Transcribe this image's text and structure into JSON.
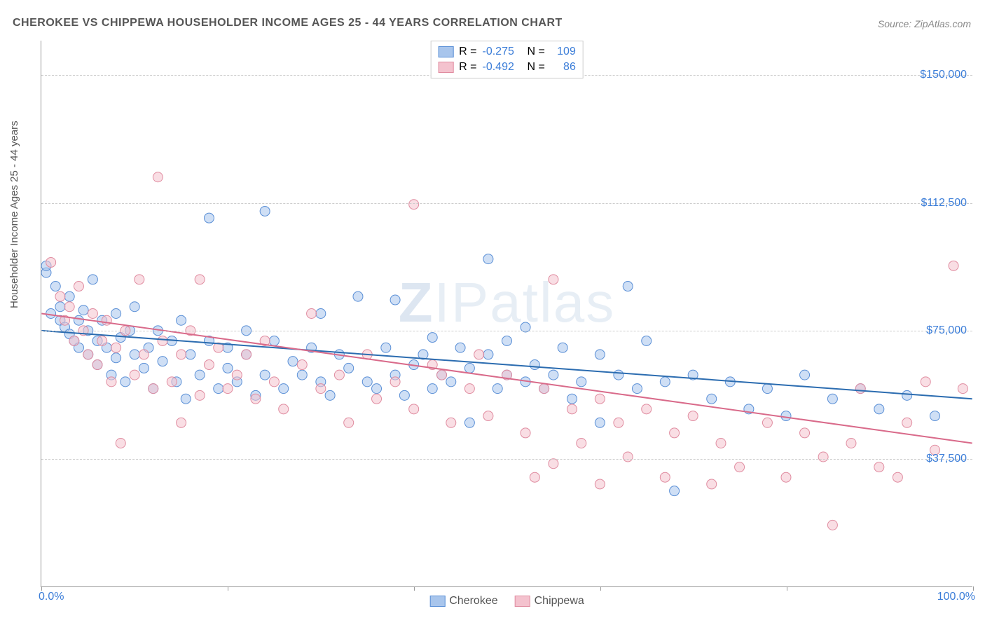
{
  "title": "CHEROKEE VS CHIPPEWA HOUSEHOLDER INCOME AGES 25 - 44 YEARS CORRELATION CHART",
  "source": "Source: ZipAtlas.com",
  "y_axis_label": "Householder Income Ages 25 - 44 years",
  "watermark": {
    "z": "Z",
    "ip": "IP",
    "atlas": "atlas"
  },
  "chart": {
    "type": "scatter",
    "xlim": [
      0,
      100
    ],
    "ylim": [
      0,
      160000
    ],
    "x_ticks": [
      0,
      20,
      40,
      60,
      80,
      100
    ],
    "y_gridlines": [
      37500,
      75000,
      112500,
      150000
    ],
    "y_tick_labels": [
      "$37,500",
      "$75,000",
      "$112,500",
      "$150,000"
    ],
    "x_min_label": "0.0%",
    "x_max_label": "100.0%",
    "background_color": "#ffffff",
    "grid_color": "#cccccc",
    "axis_color": "#999999",
    "point_radius": 7,
    "point_opacity": 0.55,
    "line_width": 2,
    "series": [
      {
        "name": "Cherokee",
        "fill": "#a8c5ec",
        "stroke": "#5a8fd6",
        "line_color": "#2b6cb0",
        "R": "-0.275",
        "N": "109",
        "regression": {
          "y_at_x0": 75000,
          "y_at_x100": 55000
        },
        "points": [
          [
            0.5,
            92000
          ],
          [
            0.5,
            94000
          ],
          [
            1,
            80000
          ],
          [
            1.5,
            88000
          ],
          [
            2,
            78000
          ],
          [
            2,
            82000
          ],
          [
            2.5,
            76000
          ],
          [
            3,
            74000
          ],
          [
            3,
            85000
          ],
          [
            3.5,
            72000
          ],
          [
            4,
            78000
          ],
          [
            4,
            70000
          ],
          [
            4.5,
            81000
          ],
          [
            5,
            68000
          ],
          [
            5,
            75000
          ],
          [
            5.5,
            90000
          ],
          [
            6,
            72000
          ],
          [
            6,
            65000
          ],
          [
            6.5,
            78000
          ],
          [
            7,
            70000
          ],
          [
            7.5,
            62000
          ],
          [
            8,
            80000
          ],
          [
            8,
            67000
          ],
          [
            8.5,
            73000
          ],
          [
            9,
            60000
          ],
          [
            9.5,
            75000
          ],
          [
            10,
            68000
          ],
          [
            10,
            82000
          ],
          [
            11,
            64000
          ],
          [
            11.5,
            70000
          ],
          [
            12,
            58000
          ],
          [
            12.5,
            75000
          ],
          [
            13,
            66000
          ],
          [
            14,
            72000
          ],
          [
            14.5,
            60000
          ],
          [
            15,
            78000
          ],
          [
            15.5,
            55000
          ],
          [
            16,
            68000
          ],
          [
            17,
            62000
          ],
          [
            18,
            72000
          ],
          [
            18,
            108000
          ],
          [
            19,
            58000
          ],
          [
            20,
            70000
          ],
          [
            20,
            64000
          ],
          [
            21,
            60000
          ],
          [
            22,
            68000
          ],
          [
            22,
            75000
          ],
          [
            23,
            56000
          ],
          [
            24,
            110000
          ],
          [
            24,
            62000
          ],
          [
            25,
            72000
          ],
          [
            26,
            58000
          ],
          [
            27,
            66000
          ],
          [
            28,
            62000
          ],
          [
            29,
            70000
          ],
          [
            30,
            60000
          ],
          [
            30,
            80000
          ],
          [
            31,
            56000
          ],
          [
            32,
            68000
          ],
          [
            33,
            64000
          ],
          [
            34,
            85000
          ],
          [
            35,
            60000
          ],
          [
            36,
            58000
          ],
          [
            37,
            70000
          ],
          [
            38,
            84000
          ],
          [
            38,
            62000
          ],
          [
            39,
            56000
          ],
          [
            40,
            65000
          ],
          [
            41,
            68000
          ],
          [
            42,
            73000
          ],
          [
            42,
            58000
          ],
          [
            43,
            62000
          ],
          [
            44,
            60000
          ],
          [
            45,
            70000
          ],
          [
            46,
            48000
          ],
          [
            46,
            64000
          ],
          [
            48,
            68000
          ],
          [
            48,
            96000
          ],
          [
            49,
            58000
          ],
          [
            50,
            72000
          ],
          [
            50,
            62000
          ],
          [
            52,
            60000
          ],
          [
            52,
            76000
          ],
          [
            53,
            65000
          ],
          [
            54,
            58000
          ],
          [
            55,
            62000
          ],
          [
            56,
            70000
          ],
          [
            57,
            55000
          ],
          [
            58,
            60000
          ],
          [
            60,
            68000
          ],
          [
            60,
            48000
          ],
          [
            62,
            62000
          ],
          [
            63,
            88000
          ],
          [
            64,
            58000
          ],
          [
            65,
            72000
          ],
          [
            67,
            60000
          ],
          [
            68,
            28000
          ],
          [
            70,
            62000
          ],
          [
            72,
            55000
          ],
          [
            74,
            60000
          ],
          [
            76,
            52000
          ],
          [
            78,
            58000
          ],
          [
            80,
            50000
          ],
          [
            82,
            62000
          ],
          [
            85,
            55000
          ],
          [
            88,
            58000
          ],
          [
            90,
            52000
          ],
          [
            93,
            56000
          ],
          [
            96,
            50000
          ]
        ]
      },
      {
        "name": "Chippewa",
        "fill": "#f4c2ce",
        "stroke": "#e08ca0",
        "line_color": "#d96a8a",
        "R": "-0.492",
        "N": "86",
        "regression": {
          "y_at_x0": 80000,
          "y_at_x100": 42000
        },
        "points": [
          [
            1,
            95000
          ],
          [
            2,
            85000
          ],
          [
            2.5,
            78000
          ],
          [
            3,
            82000
          ],
          [
            3.5,
            72000
          ],
          [
            4,
            88000
          ],
          [
            4.5,
            75000
          ],
          [
            5,
            68000
          ],
          [
            5.5,
            80000
          ],
          [
            6,
            65000
          ],
          [
            6.5,
            72000
          ],
          [
            7,
            78000
          ],
          [
            7.5,
            60000
          ],
          [
            8,
            70000
          ],
          [
            8.5,
            42000
          ],
          [
            9,
            75000
          ],
          [
            10,
            62000
          ],
          [
            10.5,
            90000
          ],
          [
            11,
            68000
          ],
          [
            12,
            58000
          ],
          [
            12.5,
            120000
          ],
          [
            13,
            72000
          ],
          [
            14,
            60000
          ],
          [
            15,
            68000
          ],
          [
            15,
            48000
          ],
          [
            16,
            75000
          ],
          [
            17,
            90000
          ],
          [
            17,
            56000
          ],
          [
            18,
            65000
          ],
          [
            19,
            70000
          ],
          [
            20,
            58000
          ],
          [
            21,
            62000
          ],
          [
            22,
            68000
          ],
          [
            23,
            55000
          ],
          [
            24,
            72000
          ],
          [
            25,
            60000
          ],
          [
            26,
            52000
          ],
          [
            28,
            65000
          ],
          [
            29,
            80000
          ],
          [
            30,
            58000
          ],
          [
            32,
            62000
          ],
          [
            33,
            48000
          ],
          [
            35,
            68000
          ],
          [
            36,
            55000
          ],
          [
            38,
            60000
          ],
          [
            40,
            52000
          ],
          [
            40,
            112000
          ],
          [
            42,
            65000
          ],
          [
            43,
            62000
          ],
          [
            44,
            48000
          ],
          [
            46,
            58000
          ],
          [
            47,
            68000
          ],
          [
            48,
            50000
          ],
          [
            50,
            62000
          ],
          [
            52,
            45000
          ],
          [
            53,
            32000
          ],
          [
            54,
            58000
          ],
          [
            55,
            36000
          ],
          [
            55,
            90000
          ],
          [
            57,
            52000
          ],
          [
            58,
            42000
          ],
          [
            60,
            30000
          ],
          [
            60,
            55000
          ],
          [
            62,
            48000
          ],
          [
            63,
            38000
          ],
          [
            65,
            52000
          ],
          [
            67,
            32000
          ],
          [
            68,
            45000
          ],
          [
            70,
            50000
          ],
          [
            72,
            30000
          ],
          [
            73,
            42000
          ],
          [
            75,
            35000
          ],
          [
            78,
            48000
          ],
          [
            80,
            32000
          ],
          [
            82,
            45000
          ],
          [
            84,
            38000
          ],
          [
            85,
            18000
          ],
          [
            87,
            42000
          ],
          [
            88,
            58000
          ],
          [
            90,
            35000
          ],
          [
            92,
            32000
          ],
          [
            93,
            48000
          ],
          [
            95,
            60000
          ],
          [
            96,
            40000
          ],
          [
            98,
            94000
          ],
          [
            99,
            58000
          ]
        ]
      }
    ]
  },
  "legend_top_labels": {
    "R": "R =",
    "N": "N ="
  },
  "colors": {
    "title": "#555555",
    "source": "#888888",
    "value_highlight": "#3b7dd8"
  }
}
